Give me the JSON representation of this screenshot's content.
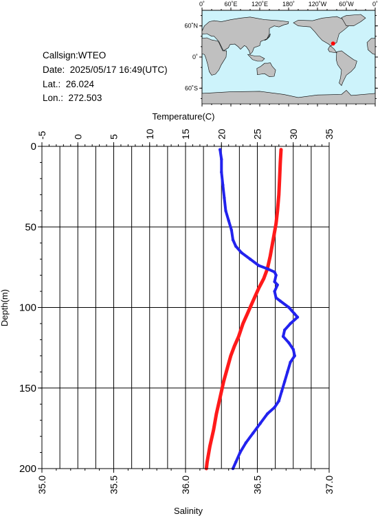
{
  "header": {
    "callsign": "Callsign:WTEO",
    "date": "Date:  2025/05/17 16:49(UTC)",
    "lat": "Lat.:  26.024",
    "lon": "Lon.:  272.503"
  },
  "map": {
    "lon_labels": [
      "0˚",
      "60˚E",
      "120˚E",
      "180˚",
      "120˚W",
      "60˚W",
      "0˚"
    ],
    "lat_labels": [
      "60˚N",
      "0˚",
      "60˚S"
    ],
    "ocean_color": "#cdf3fb",
    "land_color": "#c0c0c0",
    "marker_color": "#ff0000",
    "marker_lon": 272.503,
    "marker_lat": 26.024
  },
  "colors": {
    "temperature": "#ff1a1a",
    "salinity": "#2222ee"
  },
  "chart_data": {
    "type": "line",
    "title": "",
    "ylabel": "Depth(m)",
    "ylim": [
      200,
      0
    ],
    "yticks": [
      "0",
      "50",
      "100",
      "150",
      "200"
    ],
    "x_top": {
      "label": "Temperature(C)",
      "lim": [
        -5,
        35
      ],
      "ticks": [
        "-5",
        "0",
        "5",
        "10",
        "15",
        "20",
        "25",
        "30",
        "35"
      ]
    },
    "x_bottom": {
      "label": "Salinity",
      "lim": [
        35.0,
        37.0
      ],
      "ticks": [
        "35.0",
        "35.5",
        "36.0",
        "36.5",
        "37.0"
      ]
    },
    "grid": true,
    "series": [
      {
        "axis": "temperature",
        "points": [
          [
            28.3,
            2
          ],
          [
            28.2,
            10
          ],
          [
            28.1,
            20
          ],
          [
            28.0,
            30
          ],
          [
            27.8,
            40
          ],
          [
            27.6,
            48
          ],
          [
            27.2,
            58
          ],
          [
            26.8,
            68
          ],
          [
            26.4,
            76
          ],
          [
            25.9,
            82
          ],
          [
            25.2,
            88
          ],
          [
            24.6,
            94
          ],
          [
            24.2,
            98
          ],
          [
            23.6,
            104
          ],
          [
            23.0,
            110
          ],
          [
            22.4,
            118
          ],
          [
            21.8,
            124
          ],
          [
            21.3,
            130
          ],
          [
            20.8,
            138
          ],
          [
            20.3,
            146
          ],
          [
            19.8,
            156
          ],
          [
            19.3,
            166
          ],
          [
            18.9,
            176
          ],
          [
            18.4,
            186
          ],
          [
            18.0,
            196
          ],
          [
            17.9,
            200
          ]
        ]
      },
      {
        "axis": "salinity",
        "points": [
          [
            36.24,
            2
          ],
          [
            36.25,
            8
          ],
          [
            36.25,
            16
          ],
          [
            36.26,
            24
          ],
          [
            36.27,
            32
          ],
          [
            36.28,
            40
          ],
          [
            36.3,
            46
          ],
          [
            36.32,
            52
          ],
          [
            36.33,
            58
          ],
          [
            36.35,
            62
          ],
          [
            36.39,
            66
          ],
          [
            36.45,
            70
          ],
          [
            36.51,
            74
          ],
          [
            36.57,
            76
          ],
          [
            36.62,
            78
          ],
          [
            36.63,
            80
          ],
          [
            36.62,
            84
          ],
          [
            36.64,
            86
          ],
          [
            36.62,
            90
          ],
          [
            36.63,
            94
          ],
          [
            36.66,
            96
          ],
          [
            36.72,
            100
          ],
          [
            36.76,
            104
          ],
          [
            36.78,
            106
          ],
          [
            36.73,
            110
          ],
          [
            36.69,
            114
          ],
          [
            36.68,
            118
          ],
          [
            36.72,
            122
          ],
          [
            36.75,
            126
          ],
          [
            36.76,
            130
          ],
          [
            36.73,
            134
          ],
          [
            36.71,
            140
          ],
          [
            36.69,
            146
          ],
          [
            36.67,
            152
          ],
          [
            36.65,
            158
          ],
          [
            36.62,
            162
          ],
          [
            36.57,
            166
          ],
          [
            36.52,
            172
          ],
          [
            36.47,
            178
          ],
          [
            36.42,
            184
          ],
          [
            36.38,
            190
          ],
          [
            36.35,
            196
          ],
          [
            36.33,
            200
          ]
        ]
      }
    ]
  }
}
